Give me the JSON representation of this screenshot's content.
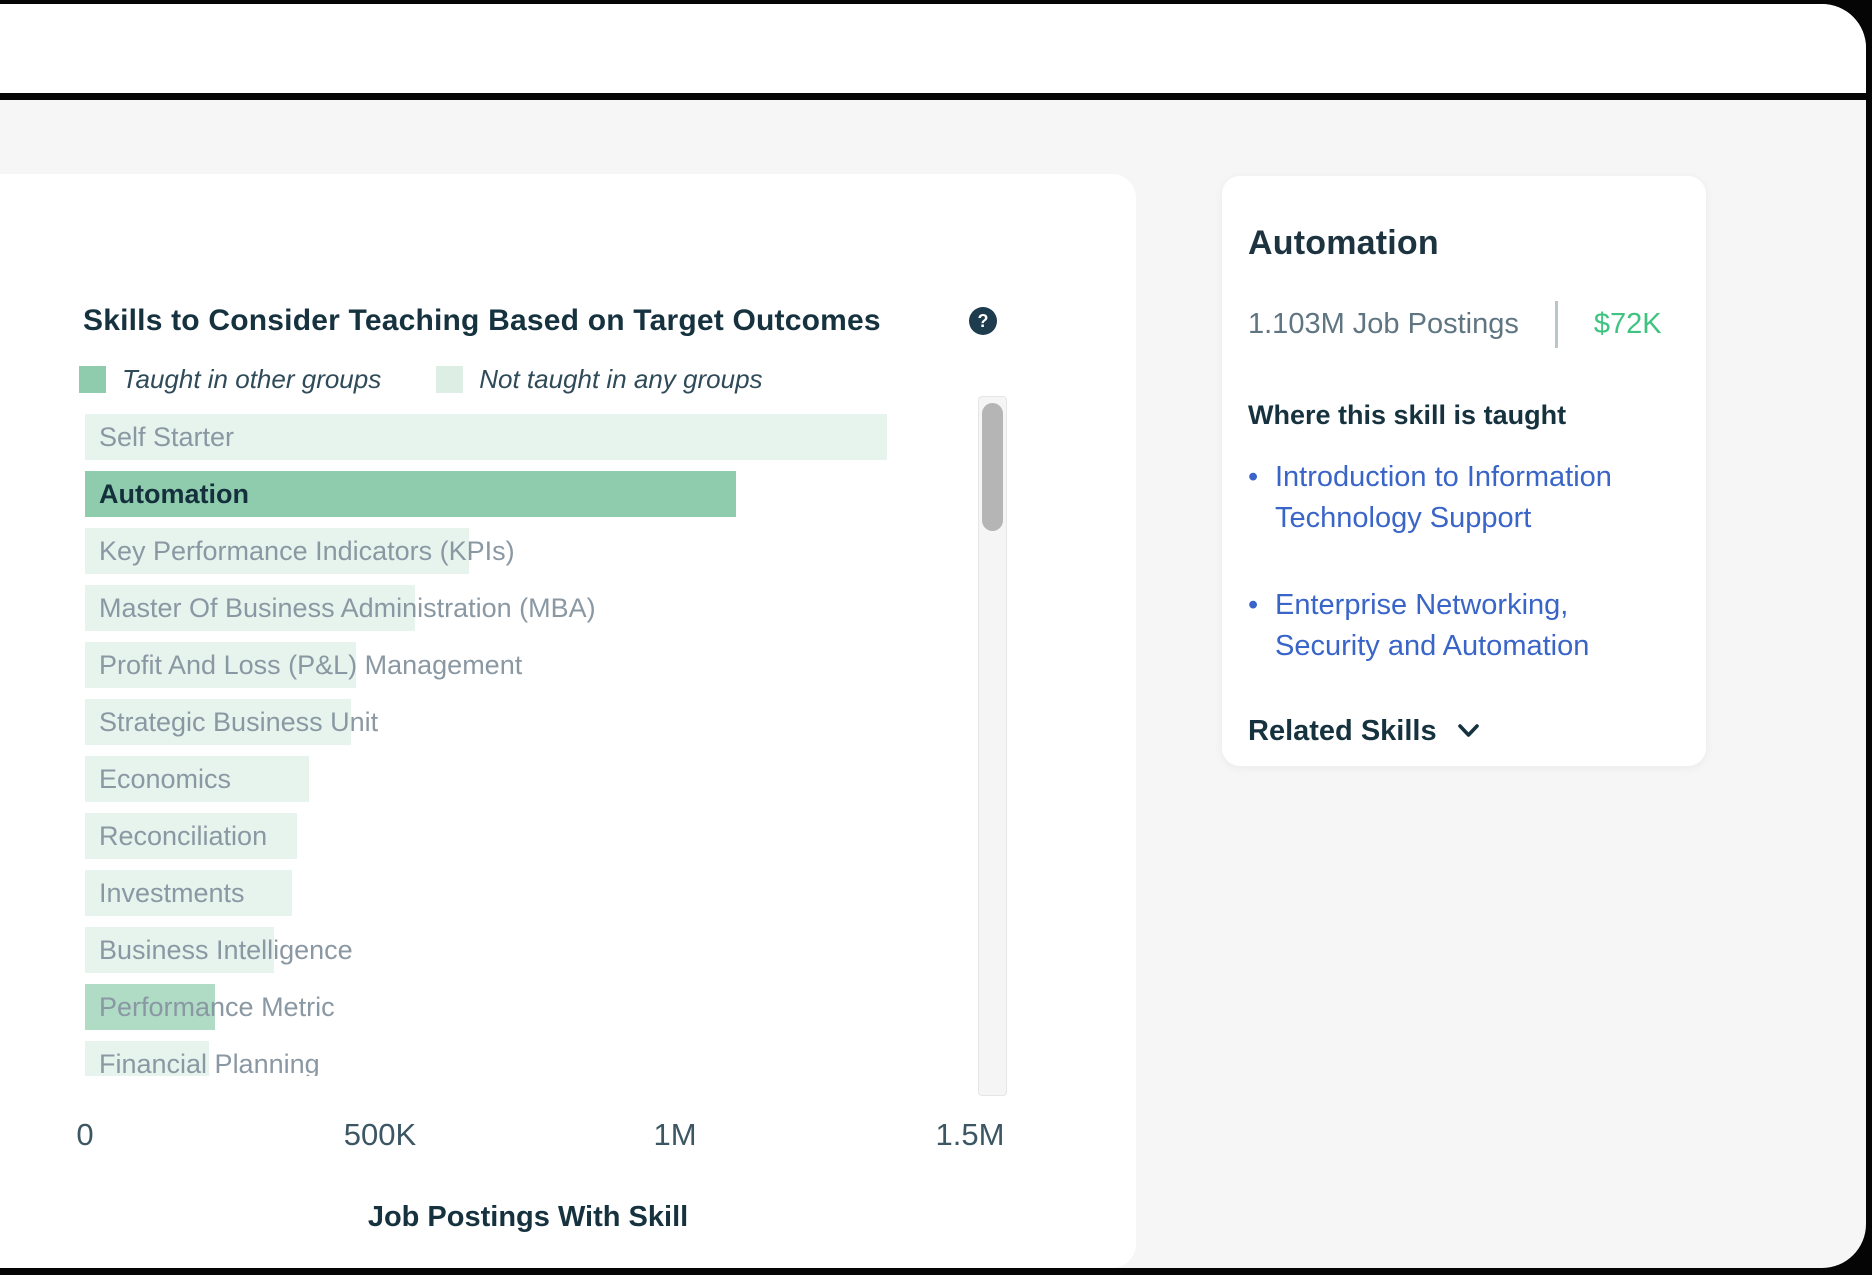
{
  "chart_card": {
    "title": "Skills to Consider Teaching Based on Target Outcomes",
    "help_glyph": "?",
    "legend": [
      {
        "label": "Taught in other groups",
        "color": "#8fccad"
      },
      {
        "label": "Not taught in any groups",
        "color": "#ddeee5"
      }
    ]
  },
  "chart_data": {
    "type": "bar",
    "orientation": "horizontal",
    "title": "Skills to Consider Teaching Based on Target Outcomes",
    "xlabel": "Job Postings With Skill",
    "ylabel": "",
    "xlim": [
      0,
      1500000
    ],
    "x_ticks": [
      {
        "value": 0,
        "label": "0"
      },
      {
        "value": 500000,
        "label": "500K"
      },
      {
        "value": 1000000,
        "label": "1M"
      },
      {
        "value": 1500000,
        "label": "1.5M"
      }
    ],
    "grid": false,
    "legend_position": "top",
    "bars": [
      {
        "label": "Self Starter",
        "value": 1360000,
        "status": "not_taught"
      },
      {
        "label": "Automation",
        "value": 1103000,
        "status": "selected"
      },
      {
        "label": "Key Performance Indicators (KPIs)",
        "value": 650000,
        "status": "not_taught"
      },
      {
        "label": "Master Of Business Administration (MBA)",
        "value": 560000,
        "status": "not_taught"
      },
      {
        "label": "Profit And Loss (P&L) Management",
        "value": 460000,
        "status": "not_taught"
      },
      {
        "label": "Strategic Business Unit",
        "value": 450000,
        "status": "not_taught"
      },
      {
        "label": "Economics",
        "value": 380000,
        "status": "not_taught"
      },
      {
        "label": "Reconciliation",
        "value": 360000,
        "status": "not_taught"
      },
      {
        "label": "Investments",
        "value": 350000,
        "status": "not_taught"
      },
      {
        "label": "Business Intelligence",
        "value": 320000,
        "status": "not_taught"
      },
      {
        "label": "Performance Metric",
        "value": 220000,
        "status": "taught"
      },
      {
        "label": "Financial Planning",
        "value": 210000,
        "status": "not_taught"
      }
    ]
  },
  "detail_panel": {
    "title": "Automation",
    "job_postings": "1.103M Job Postings",
    "salary": "$72K",
    "taught_heading": "Where this skill is taught",
    "courses": [
      "Introduction to Information Technology Support",
      "Enterprise Networking, Security and Automation"
    ],
    "related_skills_label": "Related Skills"
  },
  "colors": {
    "taught": "#8fccad",
    "not_taught": "#ddeee5",
    "selected_text": "#15303d",
    "salary_green": "#3fc380",
    "link_blue": "#3a65c8",
    "heading_navy": "#16323f",
    "frame_black": "#050505",
    "background_gray": "#f6f6f7"
  }
}
